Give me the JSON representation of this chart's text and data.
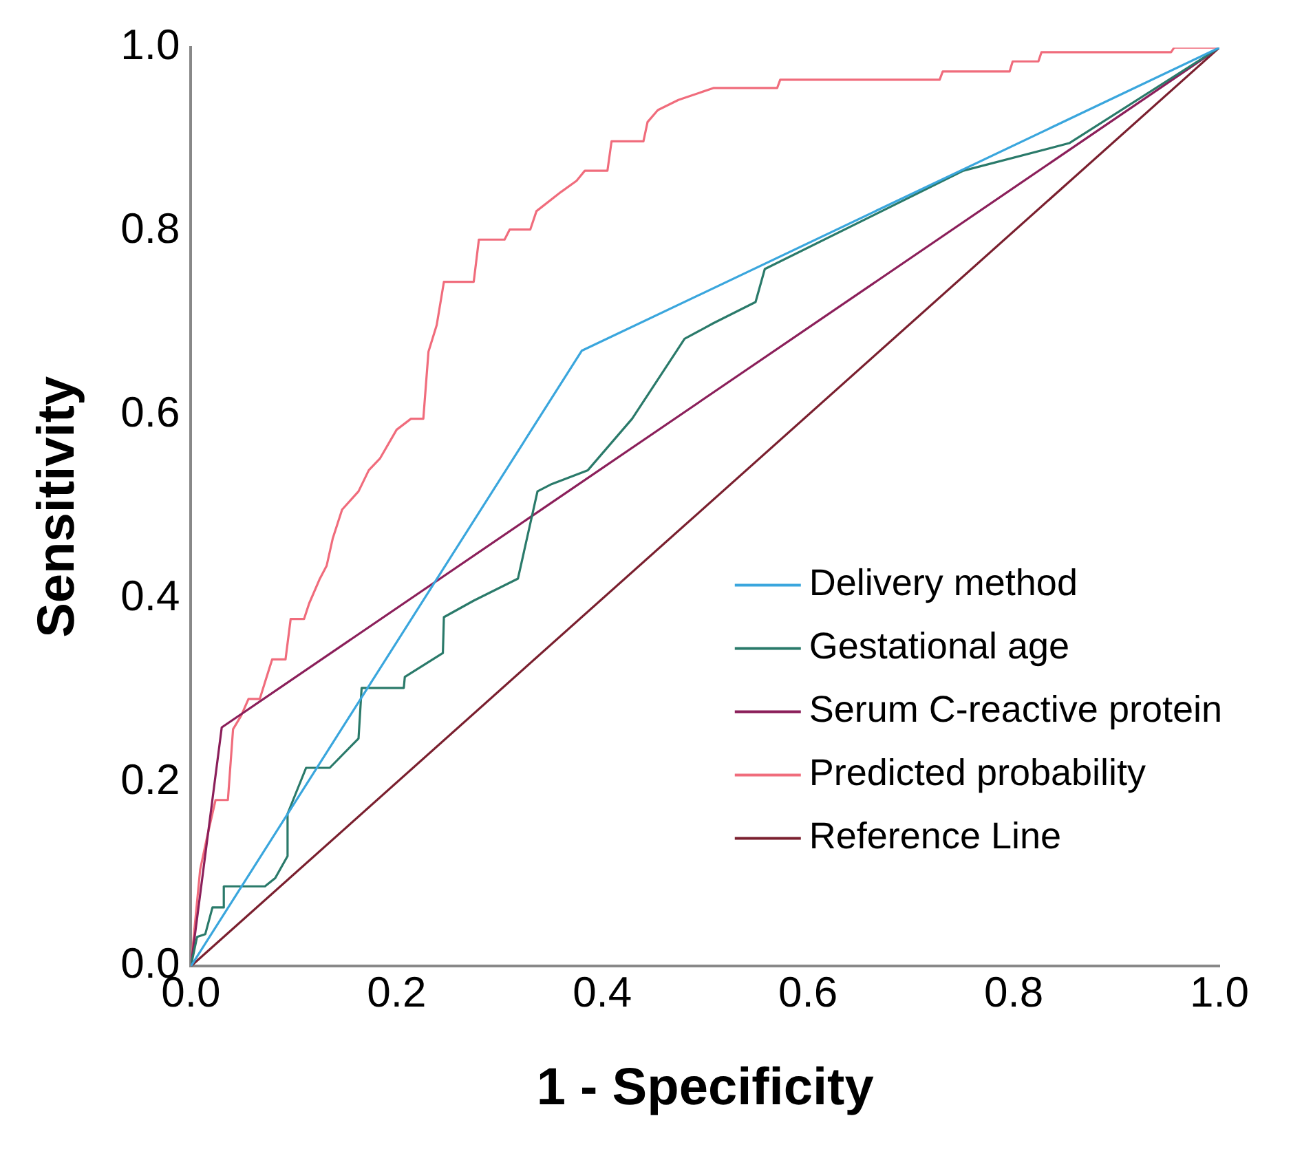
{
  "chart_data": {
    "type": "line",
    "xlabel": "1 - Specificity",
    "ylabel": "Sensitivity",
    "xlim": [
      0,
      1
    ],
    "ylim": [
      0,
      1
    ],
    "xticks": [
      {
        "value": 0,
        "label": "0.0"
      },
      0.2,
      0.4,
      0.6,
      0.8,
      {
        "value": 1,
        "label": "1.0"
      }
    ],
    "yticks": [
      {
        "value": 0,
        "label": "0.0"
      },
      0.2,
      0.4,
      0.6,
      0.8,
      {
        "value": 1,
        "label": "1.0"
      }
    ],
    "grid": false,
    "legend": "bottom right",
    "marker": "none",
    "line_style": "solid",
    "series": [
      {
        "name": "Delivery method",
        "color": "#3aa6dd",
        "x": [
          0,
          0.38,
          1
        ],
        "values": [
          0,
          0.67,
          1
        ]
      },
      {
        "name": "Gestational age",
        "color": "#2a7a6a",
        "x": [
          0,
          0.006,
          0.014,
          0.021,
          0.032,
          0.032,
          0.072,
          0.082,
          0.094,
          0.094,
          0.112,
          0.135,
          0.163,
          0.166,
          0.207,
          0.208,
          0.245,
          0.246,
          0.275,
          0.318,
          0.337,
          0.351,
          0.386,
          0.429,
          0.48,
          0.508,
          0.549,
          0.558,
          0.751,
          0.854,
          1
        ],
        "values": [
          0,
          0.032,
          0.035,
          0.064,
          0.064,
          0.087,
          0.087,
          0.096,
          0.12,
          0.166,
          0.216,
          0.216,
          0.248,
          0.303,
          0.303,
          0.315,
          0.341,
          0.38,
          0.398,
          0.422,
          0.517,
          0.525,
          0.54,
          0.596,
          0.683,
          0.7,
          0.723,
          0.759,
          0.866,
          0.896,
          1
        ]
      },
      {
        "name": "Serum C-reactive protein",
        "color": "#8b1f5a",
        "x": [
          0,
          0.03,
          1
        ],
        "values": [
          0,
          0.26,
          1
        ]
      },
      {
        "name": "Predicted probability",
        "color": "#f06c7c",
        "x": [
          0,
          0.009,
          0.016,
          0.024,
          0.036,
          0.041,
          0.049,
          0.056,
          0.067,
          0.072,
          0.079,
          0.092,
          0.097,
          0.11,
          0.115,
          0.125,
          0.132,
          0.138,
          0.147,
          0.163,
          0.173,
          0.184,
          0.2,
          0.214,
          0.226,
          0.231,
          0.239,
          0.246,
          0.275,
          0.28,
          0.305,
          0.31,
          0.33,
          0.336,
          0.36,
          0.375,
          0.383,
          0.405,
          0.409,
          0.44,
          0.444,
          0.454,
          0.474,
          0.508,
          0.57,
          0.573,
          0.728,
          0.731,
          0.796,
          0.799,
          0.824,
          0.827,
          0.953,
          0.956,
          1
        ],
        "values": [
          0,
          0.105,
          0.142,
          0.181,
          0.181,
          0.258,
          0.273,
          0.291,
          0.291,
          0.309,
          0.334,
          0.334,
          0.378,
          0.378,
          0.395,
          0.421,
          0.436,
          0.466,
          0.497,
          0.517,
          0.54,
          0.553,
          0.584,
          0.596,
          0.596,
          0.669,
          0.698,
          0.745,
          0.745,
          0.791,
          0.791,
          0.802,
          0.802,
          0.822,
          0.843,
          0.855,
          0.866,
          0.866,
          0.898,
          0.898,
          0.919,
          0.932,
          0.943,
          0.956,
          0.956,
          0.965,
          0.965,
          0.974,
          0.974,
          0.985,
          0.985,
          0.995,
          0.995,
          1,
          1
        ]
      },
      {
        "name": "Reference Line",
        "color": "#7a1f2e",
        "x": [
          0,
          1
        ],
        "values": [
          0,
          1
        ]
      }
    ]
  }
}
